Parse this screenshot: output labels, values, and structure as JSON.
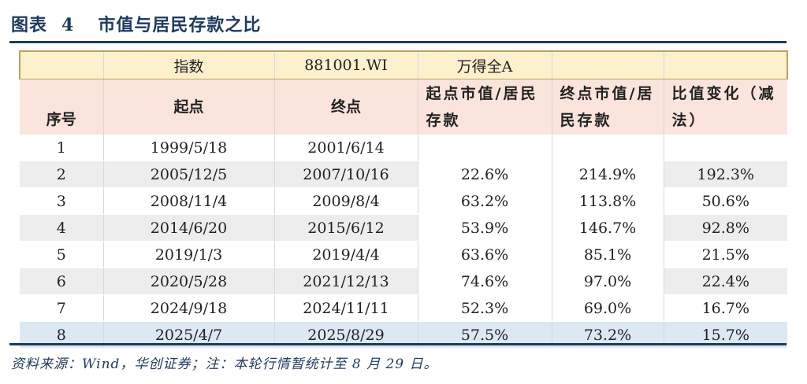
{
  "figure": {
    "label": "图表",
    "number": "4",
    "title": "市值与居民存款之比"
  },
  "index_row": {
    "label": "指数",
    "code": "881001.WI",
    "name": "万得全A"
  },
  "headers": {
    "seq": "序号",
    "start": "起点",
    "end": "终点",
    "start_ratio": "起点市值/居民存款",
    "end_ratio": "终点市值/居民存款",
    "change": "比值变化（减法）"
  },
  "rows": [
    {
      "seq": "1",
      "start": "1999/5/18",
      "end": "2001/6/14",
      "start_ratio": "",
      "end_ratio": "",
      "change": ""
    },
    {
      "seq": "2",
      "start": "2005/12/5",
      "end": "2007/10/16",
      "start_ratio": "22.6%",
      "end_ratio": "214.9%",
      "change": "192.3%"
    },
    {
      "seq": "3",
      "start": "2008/11/4",
      "end": "2009/8/4",
      "start_ratio": "63.2%",
      "end_ratio": "113.8%",
      "change": "50.6%"
    },
    {
      "seq": "4",
      "start": "2014/6/20",
      "end": "2015/6/12",
      "start_ratio": "53.9%",
      "end_ratio": "146.7%",
      "change": "92.8%"
    },
    {
      "seq": "5",
      "start": "2019/1/3",
      "end": "2019/4/4",
      "start_ratio": "63.6%",
      "end_ratio": "85.1%",
      "change": "21.5%"
    },
    {
      "seq": "6",
      "start": "2020/5/28",
      "end": "2021/12/13",
      "start_ratio": "74.6%",
      "end_ratio": "97.0%",
      "change": "22.4%"
    },
    {
      "seq": "7",
      "start": "2024/9/18",
      "end": "2024/11/11",
      "start_ratio": "52.3%",
      "end_ratio": "69.0%",
      "change": "16.7%"
    },
    {
      "seq": "8",
      "start": "2025/4/7",
      "end": "2025/8/29",
      "start_ratio": "57.5%",
      "end_ratio": "73.2%",
      "change": "15.7%"
    }
  ],
  "source": "资料来源：Wind，华创证券；注：本轮行情暂统计至 8 月 29 日。",
  "colors": {
    "title": "#1f3a5f",
    "index_row_bg": "#fdf0cc",
    "header_bg": "#fbe4dc",
    "stripe_bg": "#ededed",
    "highlight_row_bg": "#dce8f4"
  }
}
